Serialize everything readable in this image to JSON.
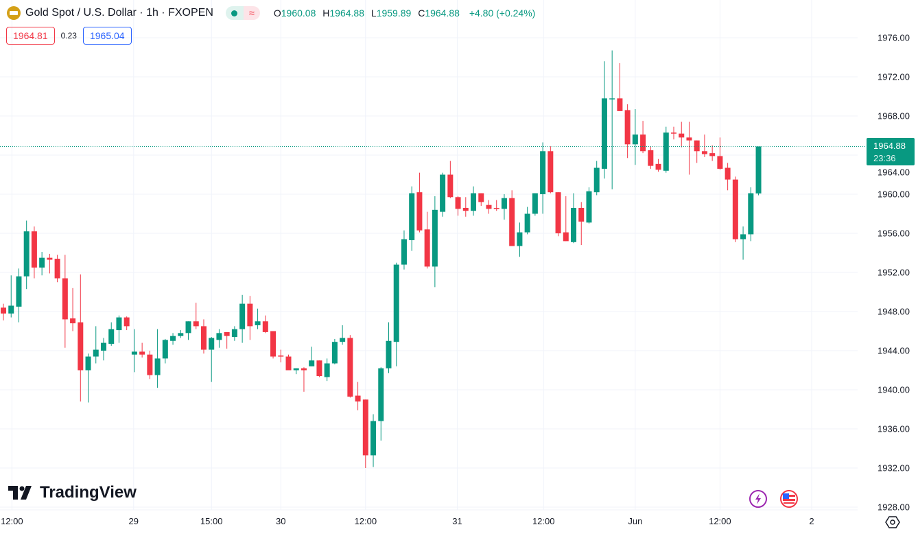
{
  "header": {
    "title": "Gold Spot / U.S. Dollar · 1h · FXOPEN",
    "status_dot": "market-open-icon",
    "delay_icon": "≈",
    "ohlc": {
      "o_label": "O",
      "o": "1960.08",
      "h_label": "H",
      "h": "1964.88",
      "l_label": "L",
      "l": "1959.89",
      "c_label": "C",
      "c": "1964.88",
      "change": "+4.80 (+0.24%)"
    }
  },
  "quotes": {
    "bid": "1964.81",
    "spread": "0.23",
    "ask": "1965.04"
  },
  "last_price": {
    "price": "1964.88",
    "countdown": "23:36"
  },
  "logo": "TradingView",
  "colors": {
    "up": "#089981",
    "down": "#f23645",
    "grid": "#f0f3fa"
  },
  "chart_data": {
    "type": "candlestick",
    "title": "Gold Spot / U.S. Dollar · 1h · FXOPEN",
    "ylim": [
      1928,
      1976
    ],
    "y_ticks": [
      "1976.00",
      "1972.00",
      "1968.00",
      "1964.00",
      "1960.00",
      "1956.00",
      "1952.00",
      "1948.00",
      "1944.00",
      "1940.00",
      "1936.00",
      "1932.00",
      "1928.00"
    ],
    "x_ticks": [
      {
        "label": "12:00",
        "bar": 1.1
      },
      {
        "label": "29",
        "bar": 16.9
      },
      {
        "label": "15:00",
        "bar": 27
      },
      {
        "label": "30",
        "bar": 36
      },
      {
        "label": "12:00",
        "bar": 47
      },
      {
        "label": "31",
        "bar": 58.9
      },
      {
        "label": "12:00",
        "bar": 70.1
      },
      {
        "label": "Jun",
        "bar": 82
      },
      {
        "label": "12:00",
        "bar": 93
      },
      {
        "label": "2",
        "bar": 104.9
      }
    ],
    "ohlc_fields": [
      "open",
      "high",
      "low",
      "close"
    ],
    "candles": [
      [
        1948.4,
        1948.8,
        1947.1,
        1947.8
      ],
      [
        1947.8,
        1951.7,
        1947.4,
        1948.6
      ],
      [
        1948.5,
        1952.4,
        1946.9,
        1951.6
      ],
      [
        1951.6,
        1957.3,
        1950.3,
        1956.2
      ],
      [
        1956.2,
        1956.7,
        1951.4,
        1952.5
      ],
      [
        1952.5,
        1954.1,
        1951.7,
        1953.5
      ],
      [
        1953.5,
        1953.9,
        1951.9,
        1953.3
      ],
      [
        1953.4,
        1953.8,
        1951.0,
        1951.4
      ],
      [
        1951.4,
        1953.8,
        1944.3,
        1947.2
      ],
      [
        1947.3,
        1950.4,
        1946.0,
        1946.8
      ],
      [
        1946.9,
        1951.8,
        1938.8,
        1942.0
      ],
      [
        1942.0,
        1943.7,
        1938.7,
        1943.4
      ],
      [
        1943.4,
        1946.5,
        1942.7,
        1944.1
      ],
      [
        1944.0,
        1945.3,
        1943.0,
        1944.8
      ],
      [
        1944.7,
        1946.9,
        1944.5,
        1946.2
      ],
      [
        1946.1,
        1947.6,
        1944.8,
        1947.4
      ],
      [
        1947.4,
        1947.5,
        1946.1,
        1946.5
      ],
      [
        1943.6,
        1946.2,
        1941.8,
        1943.9
      ],
      [
        1943.9,
        1944.8,
        1943.3,
        1943.6
      ],
      [
        1943.6,
        1944.0,
        1941.1,
        1941.5
      ],
      [
        1941.5,
        1946.2,
        1940.2,
        1943.2
      ],
      [
        1943.2,
        1945.2,
        1942.7,
        1945.1
      ],
      [
        1945.0,
        1945.8,
        1944.6,
        1945.5
      ],
      [
        1945.5,
        1946.1,
        1945.3,
        1945.8
      ],
      [
        1945.8,
        1947.0,
        1945.1,
        1947.0
      ],
      [
        1947.0,
        1948.9,
        1946.2,
        1946.5
      ],
      [
        1946.5,
        1947.2,
        1943.7,
        1944.1
      ],
      [
        1944.1,
        1945.4,
        1940.8,
        1945.3
      ],
      [
        1945.1,
        1946.2,
        1944.3,
        1945.8
      ],
      [
        1945.9,
        1945.9,
        1944.2,
        1945.5
      ],
      [
        1945.4,
        1946.5,
        1945.0,
        1946.2
      ],
      [
        1946.2,
        1949.7,
        1944.8,
        1948.8
      ],
      [
        1948.8,
        1949.6,
        1945.1,
        1946.5
      ],
      [
        1946.6,
        1948.3,
        1946.2,
        1947.0
      ],
      [
        1947.0,
        1947.6,
        1945.8,
        1945.9
      ],
      [
        1946.0,
        1946.0,
        1943.2,
        1943.4
      ],
      [
        1943.5,
        1944.1,
        1942.8,
        1943.4
      ],
      [
        1943.4,
        1943.6,
        1942.0,
        1942.0
      ],
      [
        1942.0,
        1942.2,
        1941.6,
        1942.2
      ],
      [
        1942.2,
        1942.3,
        1939.8,
        1942.0
      ],
      [
        1942.4,
        1944.4,
        1942.4,
        1943.0
      ],
      [
        1943.0,
        1943.0,
        1941.3,
        1941.4
      ],
      [
        1941.3,
        1943.2,
        1940.9,
        1942.7
      ],
      [
        1942.7,
        1945.2,
        1942.6,
        1944.9
      ],
      [
        1944.9,
        1946.6,
        1944.6,
        1945.3
      ],
      [
        1945.3,
        1945.6,
        1939.2,
        1939.3
      ],
      [
        1939.4,
        1940.8,
        1937.9,
        1938.8
      ],
      [
        1939.0,
        1939.0,
        1932.0,
        1933.3
      ],
      [
        1933.3,
        1937.5,
        1932.1,
        1936.8
      ],
      [
        1936.8,
        1942.3,
        1934.8,
        1942.2
      ],
      [
        1942.2,
        1946.9,
        1941.7,
        1945.0
      ],
      [
        1944.9,
        1953.0,
        1942.4,
        1952.8
      ],
      [
        1952.8,
        1956.3,
        1952.3,
        1955.4
      ],
      [
        1955.3,
        1960.8,
        1954.2,
        1960.1
      ],
      [
        1960.2,
        1962.2,
        1956.1,
        1956.3
      ],
      [
        1956.4,
        1958.2,
        1952.4,
        1952.6
      ],
      [
        1952.6,
        1959.8,
        1950.5,
        1958.4
      ],
      [
        1958.2,
        1962.2,
        1957.7,
        1962.0
      ],
      [
        1962.0,
        1963.4,
        1959.6,
        1959.7
      ],
      [
        1959.7,
        1959.8,
        1957.8,
        1958.5
      ],
      [
        1958.6,
        1959.7,
        1957.7,
        1958.3
      ],
      [
        1958.3,
        1960.8,
        1957.8,
        1960.1
      ],
      [
        1960.1,
        1960.1,
        1958.8,
        1959.2
      ],
      [
        1958.9,
        1959.4,
        1958.0,
        1958.5
      ],
      [
        1958.6,
        1959.4,
        1958.3,
        1958.5
      ],
      [
        1958.5,
        1960.0,
        1957.4,
        1959.6
      ],
      [
        1959.6,
        1960.4,
        1954.7,
        1954.7
      ],
      [
        1954.7,
        1957.1,
        1953.6,
        1956.1
      ],
      [
        1956.1,
        1958.7,
        1955.9,
        1958.0
      ],
      [
        1958.0,
        1960.1,
        1957.8,
        1960.1
      ],
      [
        1960.0,
        1965.3,
        1958.0,
        1964.4
      ],
      [
        1964.4,
        1964.9,
        1960.1,
        1960.2
      ],
      [
        1960.2,
        1960.2,
        1955.7,
        1956.0
      ],
      [
        1956.1,
        1959.8,
        1955.2,
        1955.2
      ],
      [
        1955.1,
        1960.1,
        1955.0,
        1958.6
      ],
      [
        1958.6,
        1959.2,
        1954.8,
        1957.2
      ],
      [
        1957.1,
        1960.7,
        1957.0,
        1960.3
      ],
      [
        1960.2,
        1963.4,
        1959.9,
        1962.7
      ],
      [
        1962.6,
        1973.6,
        1961.6,
        1969.8
      ],
      [
        1969.7,
        1974.7,
        1960.5,
        1969.8
      ],
      [
        1969.8,
        1973.4,
        1968.5,
        1968.5
      ],
      [
        1968.6,
        1969.2,
        1963.7,
        1965.1
      ],
      [
        1965.1,
        1968.7,
        1963.0,
        1966.1
      ],
      [
        1966.1,
        1967.5,
        1964.2,
        1964.4
      ],
      [
        1964.5,
        1964.9,
        1962.6,
        1962.9
      ],
      [
        1963.1,
        1963.6,
        1962.3,
        1962.5
      ],
      [
        1962.4,
        1966.9,
        1962.2,
        1966.3
      ],
      [
        1966.3,
        1966.9,
        1965.6,
        1966.2
      ],
      [
        1966.2,
        1967.4,
        1964.8,
        1965.8
      ],
      [
        1965.8,
        1967.4,
        1962.0,
        1965.5
      ],
      [
        1965.5,
        1965.5,
        1963.2,
        1964.4
      ],
      [
        1964.4,
        1966.1,
        1963.8,
        1964.1
      ],
      [
        1964.2,
        1965.0,
        1963.4,
        1963.9
      ],
      [
        1963.9,
        1965.8,
        1962.5,
        1962.6
      ],
      [
        1962.7,
        1963.2,
        1960.4,
        1961.5
      ],
      [
        1961.5,
        1961.8,
        1955.1,
        1955.4
      ],
      [
        1955.4,
        1956.7,
        1953.3,
        1955.9
      ],
      [
        1955.9,
        1960.7,
        1955.2,
        1960.1
      ],
      [
        1960.08,
        1964.88,
        1959.89,
        1964.88
      ]
    ],
    "last_price": 1964.88
  }
}
